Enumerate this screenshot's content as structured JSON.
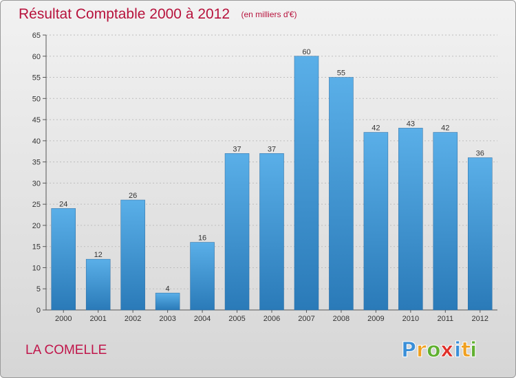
{
  "chart_data": {
    "type": "bar",
    "title": "Résultat Comptable 2000 à 2012",
    "subtitle": "(en milliers d'€)",
    "categories": [
      "2000",
      "2001",
      "2002",
      "2003",
      "2004",
      "2005",
      "2006",
      "2007",
      "2008",
      "2009",
      "2010",
      "2011",
      "2012"
    ],
    "values": [
      24,
      12,
      26,
      4,
      16,
      37,
      37,
      60,
      55,
      42,
      43,
      42,
      36
    ],
    "ylim": [
      0,
      65
    ],
    "yticks": [
      0,
      5,
      10,
      15,
      20,
      25,
      30,
      35,
      40,
      45,
      50,
      55,
      60,
      65
    ],
    "grid": true,
    "xlabel": "",
    "ylabel": ""
  },
  "footer": {
    "commune": "LA COMELLE",
    "logo": {
      "letters": [
        {
          "ch": "P",
          "color": "#3a8fd8"
        },
        {
          "ch": "r",
          "color": "#f0a020"
        },
        {
          "ch": "o",
          "color": "#60b030"
        },
        {
          "ch": "x",
          "color": "#e0302a"
        },
        {
          "ch": "i",
          "color": "#3a8fd8"
        },
        {
          "ch": "t",
          "color": "#f0a020"
        },
        {
          "ch": "i",
          "color": "#60b030"
        }
      ]
    }
  },
  "colors": {
    "bar_top": "#5aafe8",
    "bar_bottom": "#2a7ab8",
    "title": "#b7123c",
    "grid": "#bdbdbd"
  }
}
